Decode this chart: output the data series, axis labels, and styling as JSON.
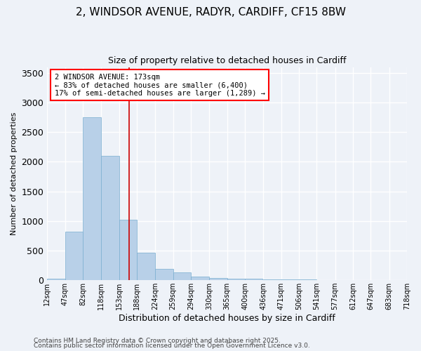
{
  "title1": "2, WINDSOR AVENUE, RADYR, CARDIFF, CF15 8BW",
  "title2": "Size of property relative to detached houses in Cardiff",
  "xlabel": "Distribution of detached houses by size in Cardiff",
  "ylabel": "Number of detached properties",
  "bar_color": "#b8d0e8",
  "bar_edge_color": "#7aaed0",
  "background_color": "#eef2f8",
  "grid_color": "#ffffff",
  "vline_x": 173,
  "vline_color": "#cc0000",
  "annotation_title": "2 WINDSOR AVENUE: 173sqm",
  "annotation_line1": "← 83% of detached houses are smaller (6,400)",
  "annotation_line2": "17% of semi-detached houses are larger (1,289) →",
  "bin_starts": [
    12,
    47,
    82,
    118,
    153,
    188,
    224,
    259,
    294,
    330,
    365,
    400,
    436,
    471,
    506,
    541,
    577,
    612,
    647,
    683
  ],
  "bin_width": 35,
  "counts": [
    30,
    820,
    2750,
    2100,
    1020,
    460,
    190,
    130,
    65,
    40,
    30,
    20,
    15,
    10,
    8,
    5,
    4,
    3,
    2,
    2
  ],
  "ylim": [
    0,
    3600
  ],
  "yticks": [
    0,
    500,
    1000,
    1500,
    2000,
    2500,
    3000,
    3500
  ],
  "xlim_min": 12,
  "xlim_max": 718,
  "tick_labels": [
    "12sqm",
    "47sqm",
    "82sqm",
    "118sqm",
    "153sqm",
    "188sqm",
    "224sqm",
    "259sqm",
    "294sqm",
    "330sqm",
    "365sqm",
    "400sqm",
    "436sqm",
    "471sqm",
    "506sqm",
    "541sqm",
    "577sqm",
    "612sqm",
    "647sqm",
    "683sqm",
    "718sqm"
  ],
  "footer1": "Contains HM Land Registry data © Crown copyright and database right 2025.",
  "footer2": "Contains public sector information licensed under the Open Government Licence v3.0."
}
